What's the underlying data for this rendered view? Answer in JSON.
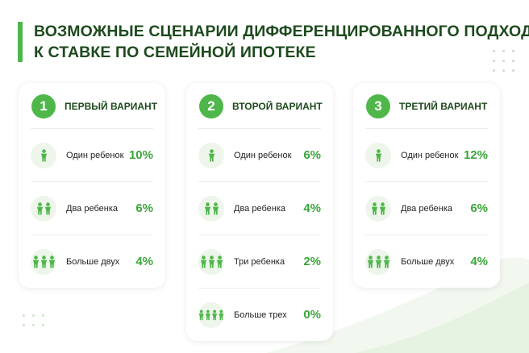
{
  "title": {
    "line1": "ВОЗМОЖНЫЕ СЦЕНАРИИ ДИФФЕРЕНЦИРОВАННОГО ПОДХОДА",
    "line2": "К СТАВКЕ ПО СЕМЕЙНОЙ ИПОТЕКЕ"
  },
  "colors": {
    "accent": "#4fb74a",
    "title": "#1e4a1e",
    "value": "#3aa63a",
    "icon_bg": "#eef6ec"
  },
  "cards": [
    {
      "number": "1",
      "title": "ПЕРВЫЙ ВАРИАНТ",
      "rows": [
        {
          "icon": "one-person-icon",
          "people": 1,
          "label": "Один ребенок",
          "value": "10%"
        },
        {
          "icon": "two-people-icon",
          "people": 2,
          "label": "Два ребенка",
          "value": "6%"
        },
        {
          "icon": "three-people-icon",
          "people": 3,
          "label": "Больше двух",
          "value": "4%"
        }
      ]
    },
    {
      "number": "2",
      "title": "ВТОРОЙ ВАРИАНТ",
      "rows": [
        {
          "icon": "one-person-icon",
          "people": 1,
          "label": "Один ребенок",
          "value": "6%"
        },
        {
          "icon": "two-people-icon",
          "people": 2,
          "label": "Два ребенка",
          "value": "4%"
        },
        {
          "icon": "three-people-icon",
          "people": 3,
          "label": "Три ребенка",
          "value": "2%"
        },
        {
          "icon": "four-people-icon",
          "people": 4,
          "label": "Больше трех",
          "value": "0%"
        }
      ]
    },
    {
      "number": "3",
      "title": "ТРЕТИЙ ВАРИАНТ",
      "rows": [
        {
          "icon": "one-person-icon",
          "people": 1,
          "label": "Один ребенок",
          "value": "12%"
        },
        {
          "icon": "two-people-icon",
          "people": 2,
          "label": "Два ребенка",
          "value": "6%"
        },
        {
          "icon": "three-people-icon",
          "people": 3,
          "label": "Больше двух",
          "value": "4%"
        }
      ]
    }
  ]
}
